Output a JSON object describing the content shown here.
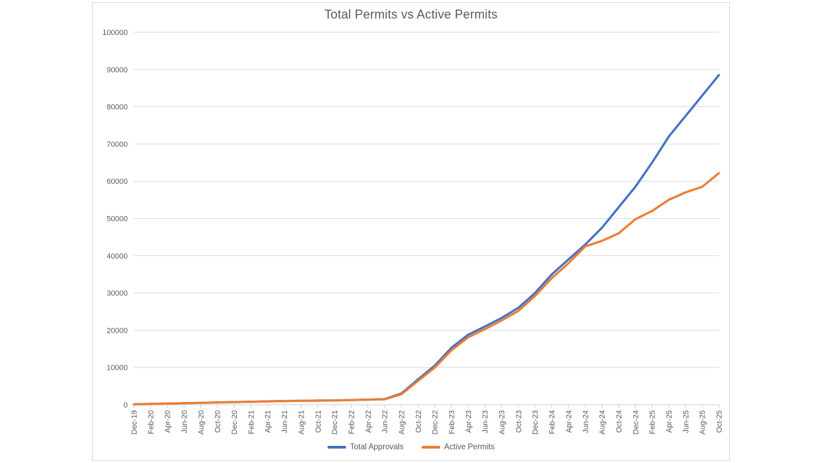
{
  "chart_data": {
    "type": "line",
    "title": "Total Permits vs Active Permits",
    "categories": [
      "Dec-19",
      "Feb-20",
      "Apr-20",
      "Jun-20",
      "Aug-20",
      "Oct-20",
      "Dec-20",
      "Feb-21",
      "Apr-21",
      "Jun-21",
      "Aug-21",
      "Oct-21",
      "Dec-21",
      "Feb-22",
      "Apr-22",
      "Jun-22",
      "Aug-22",
      "Oct-22",
      "Dec-22",
      "Feb-23",
      "Apr-23",
      "Jun-23",
      "Aug-23",
      "Oct-23",
      "Dec-23",
      "Feb-24",
      "Apr-24",
      "Jun-24",
      "Aug-24",
      "Oct-24",
      "Dec-24",
      "Feb-25",
      "Apr-25",
      "Jun-25",
      "Aug-25",
      "Oct-25"
    ],
    "series": [
      {
        "name": "Total Approvals",
        "color": "#4472C4",
        "values": [
          100,
          200,
          300,
          400,
          500,
          600,
          700,
          800,
          900,
          1000,
          1050,
          1100,
          1150,
          1250,
          1350,
          1500,
          3000,
          6800,
          10500,
          15300,
          18800,
          21000,
          23300,
          26000,
          30000,
          35000,
          39000,
          43000,
          47500,
          53000,
          58500,
          65000,
          72000,
          77500,
          83000,
          88500
        ]
      },
      {
        "name": "Active Permits",
        "color": "#ED7D31",
        "values": [
          100,
          200,
          300,
          400,
          500,
          600,
          700,
          800,
          900,
          1000,
          1050,
          1100,
          1150,
          1250,
          1350,
          1450,
          2800,
          6400,
          10000,
          14600,
          18100,
          20300,
          22600,
          25200,
          29200,
          34000,
          38000,
          42500,
          44000,
          46000,
          49800,
          52000,
          55000,
          57000,
          58500,
          62200
        ]
      }
    ],
    "ylim": [
      0,
      100000
    ],
    "y_ticks": [
      0,
      10000,
      20000,
      30000,
      40000,
      50000,
      60000,
      70000,
      80000,
      90000,
      100000
    ],
    "grid": "horizontal",
    "legend_position": "bottom",
    "x_label_rotation": -90
  },
  "colors": {
    "gridline": "#D9D9D9",
    "axis_line": "#D0CECE",
    "tick": "#D0CECE",
    "axis_text": "#595959",
    "title_text": "#595959",
    "frame_border": "#D9D9D9",
    "background": "#FFFFFF"
  }
}
